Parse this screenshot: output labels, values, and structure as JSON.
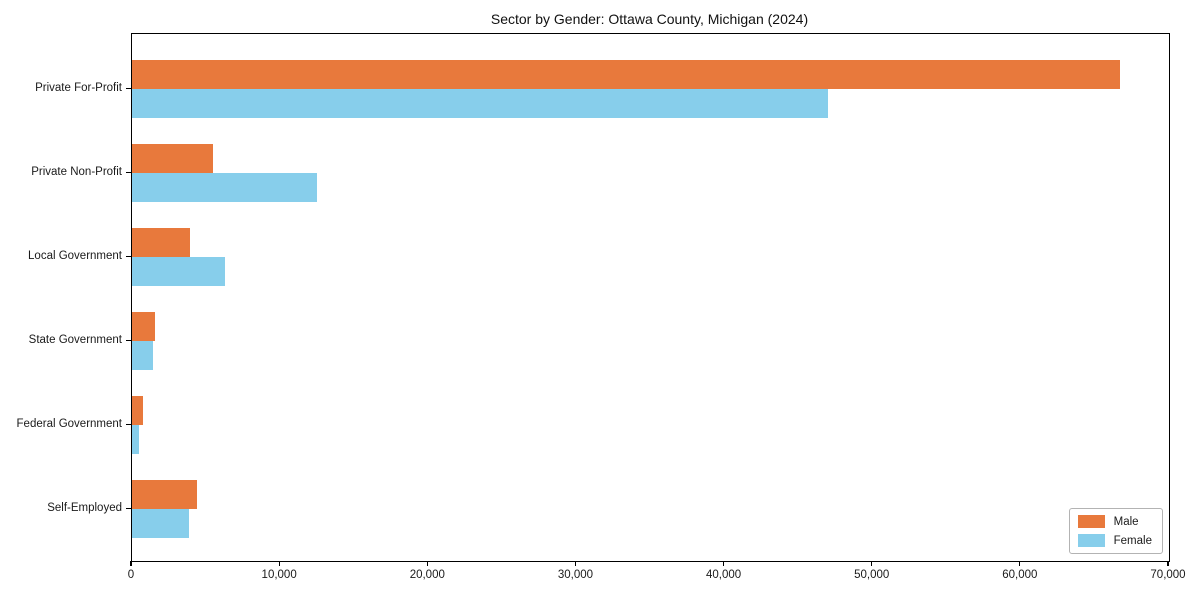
{
  "title": "Sector by Gender: Ottawa County, Michigan (2024)",
  "chart_data": {
    "type": "bar",
    "orientation": "horizontal",
    "title": "Sector by Gender: Ottawa County, Michigan (2024)",
    "categories": [
      "Private For-Profit",
      "Private Non-Profit",
      "Local Government",
      "State Government",
      "Federal Government",
      "Self-Employed"
    ],
    "series": [
      {
        "name": "Male",
        "color": "#e8793c",
        "values": [
          66700,
          5500,
          3900,
          1550,
          750,
          4400
        ]
      },
      {
        "name": "Female",
        "color": "#87ceeb",
        "values": [
          47000,
          12500,
          6300,
          1400,
          470,
          3850
        ]
      }
    ],
    "xlabel": "",
    "ylabel": "",
    "xlim": [
      0,
      70000
    ],
    "xticks": [
      0,
      10000,
      20000,
      30000,
      40000,
      50000,
      60000,
      70000
    ],
    "xtick_labels": [
      "0",
      "10,000",
      "20,000",
      "30,000",
      "40,000",
      "50,000",
      "60,000",
      "70,000"
    ],
    "legend_position": "lower right",
    "grid": false,
    "axis_color": "#000000",
    "background_color": "#ffffff"
  }
}
